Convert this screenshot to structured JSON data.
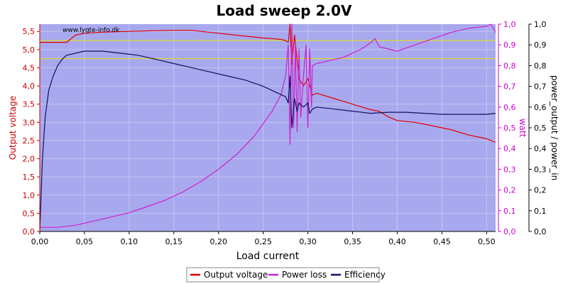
{
  "chart_data": {
    "type": "line",
    "title": "Load sweep 2.0V",
    "watermark": "www.lygte-info.dk",
    "xlabel": "Load current",
    "ylabel_left": "Output voltage",
    "ylabel_right1": "watt",
    "ylabel_right2": "power_output / power_in",
    "xlim": [
      0,
      0.51
    ],
    "ylim_left": [
      0,
      5.7
    ],
    "ylim_right1": [
      0,
      1.0
    ],
    "ylim_right2": [
      0,
      1.0
    ],
    "x_ticks": [
      "0,00",
      "0,05",
      "0,10",
      "0,15",
      "0,20",
      "0,25",
      "0,30",
      "0,35",
      "0,40",
      "0,45",
      "0,50"
    ],
    "y_left_ticks": [
      "0,0",
      "0,5",
      "1,0",
      "1,5",
      "2,0",
      "2,5",
      "3,0",
      "3,5",
      "4,0",
      "4,5",
      "5,0",
      "5,5"
    ],
    "y_right1_ticks": [
      "0,0",
      "0,1",
      "0,2",
      "0,3",
      "0,4",
      "0,5",
      "0,6",
      "0,7",
      "0,8",
      "0,9",
      "1,0"
    ],
    "y_right2_ticks": [
      "0,0",
      "0,1",
      "0,2",
      "0,3",
      "0,4",
      "0,5",
      "0,6",
      "0,7",
      "0,8",
      "0,9",
      "1,0"
    ],
    "reference_lines_left": [
      5.25,
      4.75
    ],
    "grid": true,
    "legend_position": "bottom",
    "colors": {
      "plot_bg": "#a8a8ee",
      "grid": "#c4c4f2",
      "voltage": "#e00000",
      "power_loss": "#cc22cc",
      "efficiency": "#101060",
      "reference": "#e8e800",
      "left_axis": "#cc0000",
      "right1_axis": "#cc00cc",
      "right2_axis": "#000000"
    },
    "series": [
      {
        "name": "Output voltage",
        "axis": "left",
        "x": [
          0.0,
          0.01,
          0.02,
          0.03,
          0.035,
          0.04,
          0.05,
          0.07,
          0.1,
          0.13,
          0.15,
          0.17,
          0.2,
          0.23,
          0.25,
          0.27,
          0.275,
          0.278,
          0.28,
          0.282,
          0.285,
          0.29,
          0.295,
          0.3,
          0.305,
          0.31,
          0.33,
          0.35,
          0.37,
          0.38,
          0.39,
          0.4,
          0.42,
          0.44,
          0.46,
          0.48,
          0.5,
          0.505,
          0.51
        ],
        "y": [
          5.2,
          5.2,
          5.2,
          5.2,
          5.3,
          5.4,
          5.45,
          5.48,
          5.5,
          5.52,
          5.53,
          5.53,
          5.45,
          5.37,
          5.32,
          5.28,
          5.25,
          5.2,
          5.7,
          4.6,
          5.4,
          4.2,
          4.0,
          4.2,
          3.75,
          3.8,
          3.65,
          3.5,
          3.35,
          3.3,
          3.15,
          3.05,
          3.0,
          2.9,
          2.8,
          2.65,
          2.55,
          2.5,
          2.45
        ]
      },
      {
        "name": "Power loss",
        "axis": "right1",
        "x": [
          0.0,
          0.02,
          0.04,
          0.06,
          0.08,
          0.1,
          0.12,
          0.14,
          0.16,
          0.18,
          0.2,
          0.22,
          0.24,
          0.26,
          0.27,
          0.275,
          0.278,
          0.28,
          0.282,
          0.284,
          0.286,
          0.288,
          0.29,
          0.292,
          0.295,
          0.298,
          0.3,
          0.302,
          0.304,
          0.305,
          0.31,
          0.32,
          0.34,
          0.36,
          0.37,
          0.375,
          0.38,
          0.39,
          0.4,
          0.42,
          0.44,
          0.46,
          0.48,
          0.5,
          0.505,
          0.51
        ],
        "y": [
          0.02,
          0.02,
          0.03,
          0.05,
          0.07,
          0.09,
          0.12,
          0.15,
          0.19,
          0.24,
          0.3,
          0.37,
          0.46,
          0.58,
          0.66,
          0.75,
          0.9,
          0.42,
          1.0,
          0.5,
          0.9,
          0.48,
          0.88,
          0.55,
          0.75,
          0.9,
          0.5,
          0.88,
          0.6,
          0.8,
          0.81,
          0.82,
          0.84,
          0.88,
          0.91,
          0.93,
          0.89,
          0.88,
          0.87,
          0.9,
          0.93,
          0.96,
          0.98,
          0.99,
          1.0,
          0.96
        ]
      },
      {
        "name": "Efficiency",
        "axis": "right2",
        "x": [
          0.0,
          0.003,
          0.006,
          0.01,
          0.015,
          0.02,
          0.025,
          0.03,
          0.04,
          0.05,
          0.06,
          0.07,
          0.09,
          0.11,
          0.13,
          0.15,
          0.17,
          0.19,
          0.21,
          0.23,
          0.25,
          0.26,
          0.27,
          0.275,
          0.278,
          0.28,
          0.282,
          0.285,
          0.288,
          0.29,
          0.295,
          0.3,
          0.302,
          0.305,
          0.31,
          0.33,
          0.35,
          0.37,
          0.39,
          0.41,
          0.43,
          0.45,
          0.47,
          0.49,
          0.5,
          0.51
        ],
        "y": [
          0.0,
          0.35,
          0.55,
          0.68,
          0.75,
          0.8,
          0.83,
          0.85,
          0.86,
          0.87,
          0.87,
          0.87,
          0.86,
          0.85,
          0.83,
          0.81,
          0.79,
          0.77,
          0.75,
          0.73,
          0.7,
          0.68,
          0.66,
          0.65,
          0.62,
          0.75,
          0.5,
          0.64,
          0.58,
          0.62,
          0.6,
          0.62,
          0.57,
          0.59,
          0.6,
          0.59,
          0.58,
          0.57,
          0.575,
          0.575,
          0.57,
          0.565,
          0.565,
          0.565,
          0.565,
          0.57
        ]
      }
    ]
  }
}
